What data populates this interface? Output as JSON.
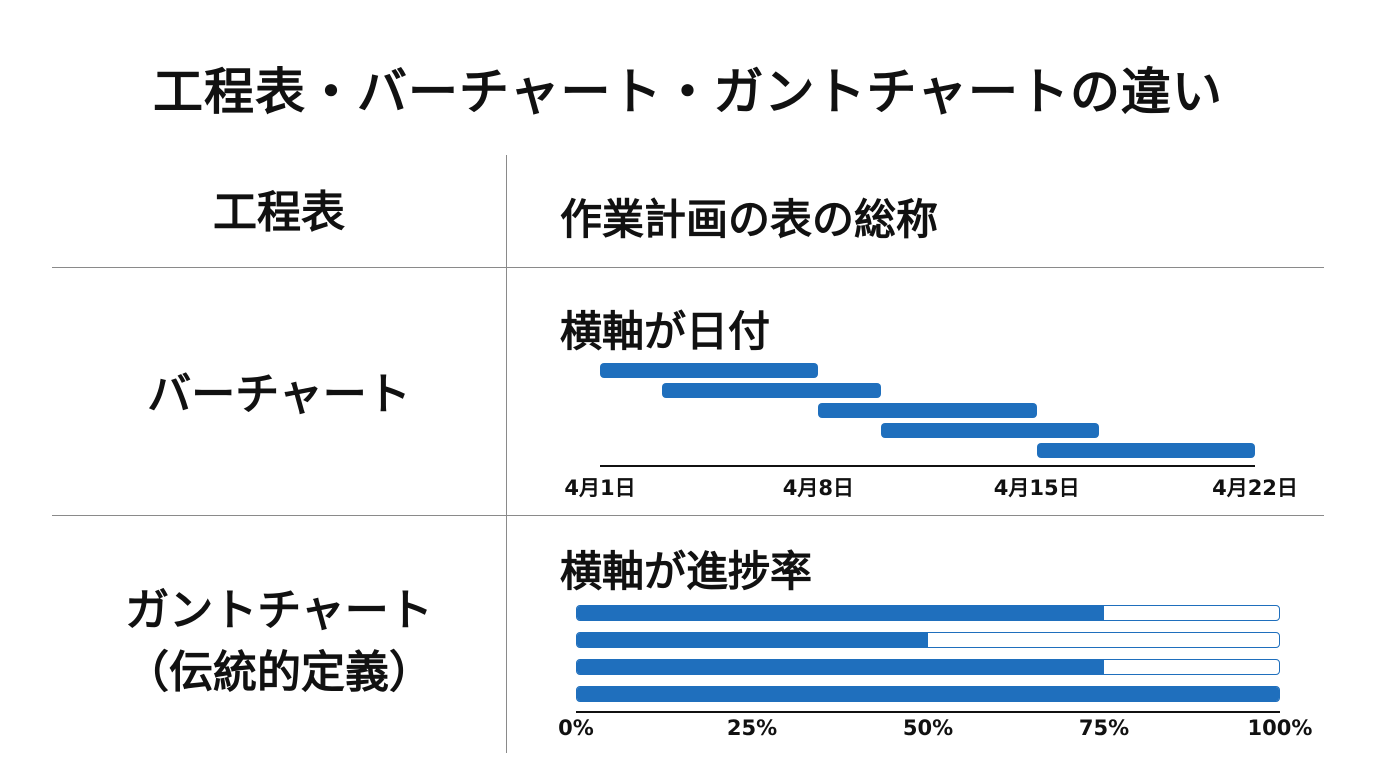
{
  "title": "工程表・バーチャート・ガントチャートの違い",
  "rows": {
    "schedule": {
      "label": "工程表",
      "description": "作業計画の表の総称"
    },
    "bar_chart": {
      "label": "バーチャート",
      "description": "横軸が日付"
    },
    "gantt_chart": {
      "label_line1": "ガントチャート",
      "label_line2": "（伝統的定義）",
      "description": "横軸が進捗率"
    }
  },
  "colors": {
    "bar": "#1f6fbd",
    "text": "#111111",
    "divider": "#8a8a8a"
  },
  "chart_data": [
    {
      "type": "bar",
      "orientation": "horizontal-timeline",
      "x_ticks": [
        "4月1日",
        "4月8日",
        "4月15日",
        "4月22日"
      ],
      "xlim": [
        "2024-04-01",
        "2024-04-22"
      ],
      "tasks": [
        {
          "start": "2024-04-01",
          "end": "2024-04-08"
        },
        {
          "start": "2024-04-03",
          "end": "2024-04-10"
        },
        {
          "start": "2024-04-08",
          "end": "2024-04-15"
        },
        {
          "start": "2024-04-10",
          "end": "2024-04-17"
        },
        {
          "start": "2024-04-15",
          "end": "2024-04-22"
        }
      ]
    },
    {
      "type": "bar",
      "orientation": "horizontal-progress",
      "x_ticks": [
        "0%",
        "25%",
        "50%",
        "75%",
        "100%"
      ],
      "xlim": [
        0,
        100
      ],
      "values": [
        75,
        50,
        75,
        100
      ]
    }
  ]
}
